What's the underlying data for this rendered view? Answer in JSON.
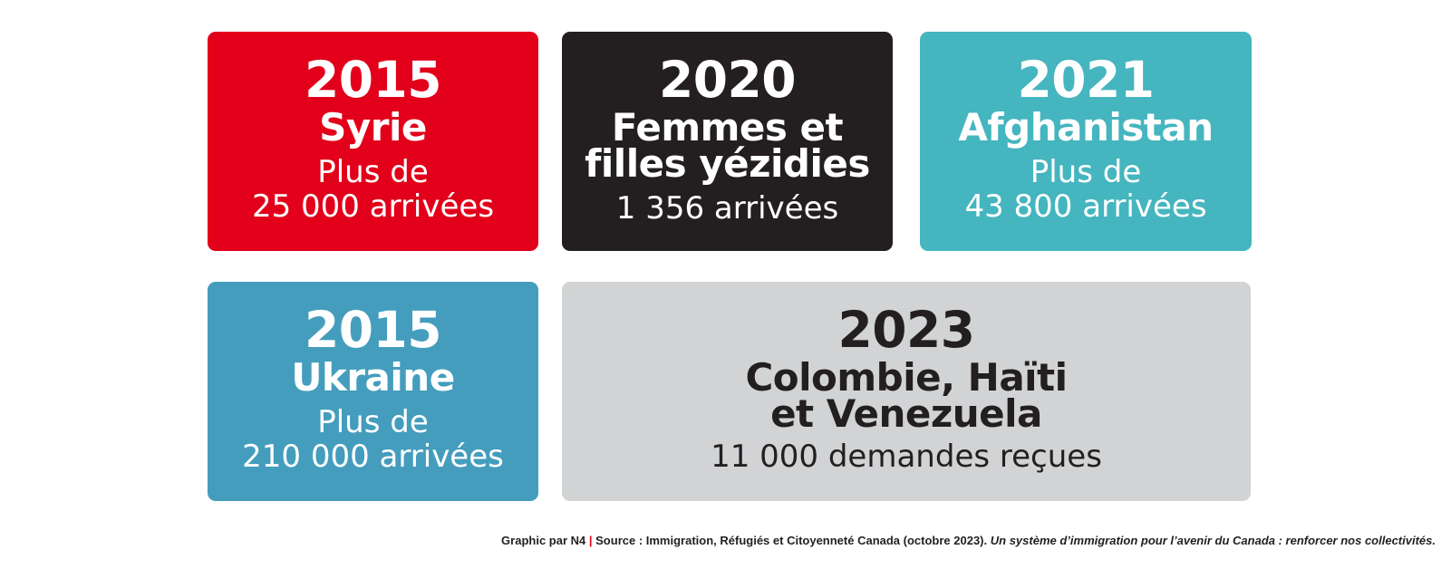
{
  "cards": [
    {
      "year": "2015",
      "subject_lines": [
        "Syrie"
      ],
      "detail_lines": [
        "Plus de",
        "25 000 arrivées"
      ],
      "background": "#e2001a"
    },
    {
      "year": "2020",
      "subject_lines": [
        "Femmes et",
        "filles yézidies"
      ],
      "detail_lines": [
        "1 356 arrivées"
      ],
      "background": "#231f20"
    },
    {
      "year": "2021",
      "subject_lines": [
        "Afghanistan"
      ],
      "detail_lines": [
        "Plus de",
        "43 800 arrivées"
      ],
      "background": "#45b5bf"
    },
    {
      "year": "2015",
      "subject_lines": [
        "Ukraine"
      ],
      "detail_lines": [
        "Plus de",
        "210 000 arrivées"
      ],
      "background": "#449dbd"
    },
    {
      "year": "2023",
      "subject_lines": [
        "Colombie, Haïti",
        "et Venezuela"
      ],
      "detail_lines": [
        "11 000 demandes reçues"
      ],
      "background": "#d1d3d4"
    }
  ],
  "footer": {
    "credit": "Graphic par N4",
    "separator": "|",
    "source": "Source : Immigration, Réfugiés et Citoyenneté Canada (octobre 2023).",
    "title": "Un système d’immigration pour l’avenir du Canada : renforcer nos collectivités."
  },
  "colors": {
    "red": "#e2001a",
    "black": "#231f20",
    "teal": "#45b5bf",
    "blue": "#449dbd",
    "gray": "#d1d3d4"
  }
}
